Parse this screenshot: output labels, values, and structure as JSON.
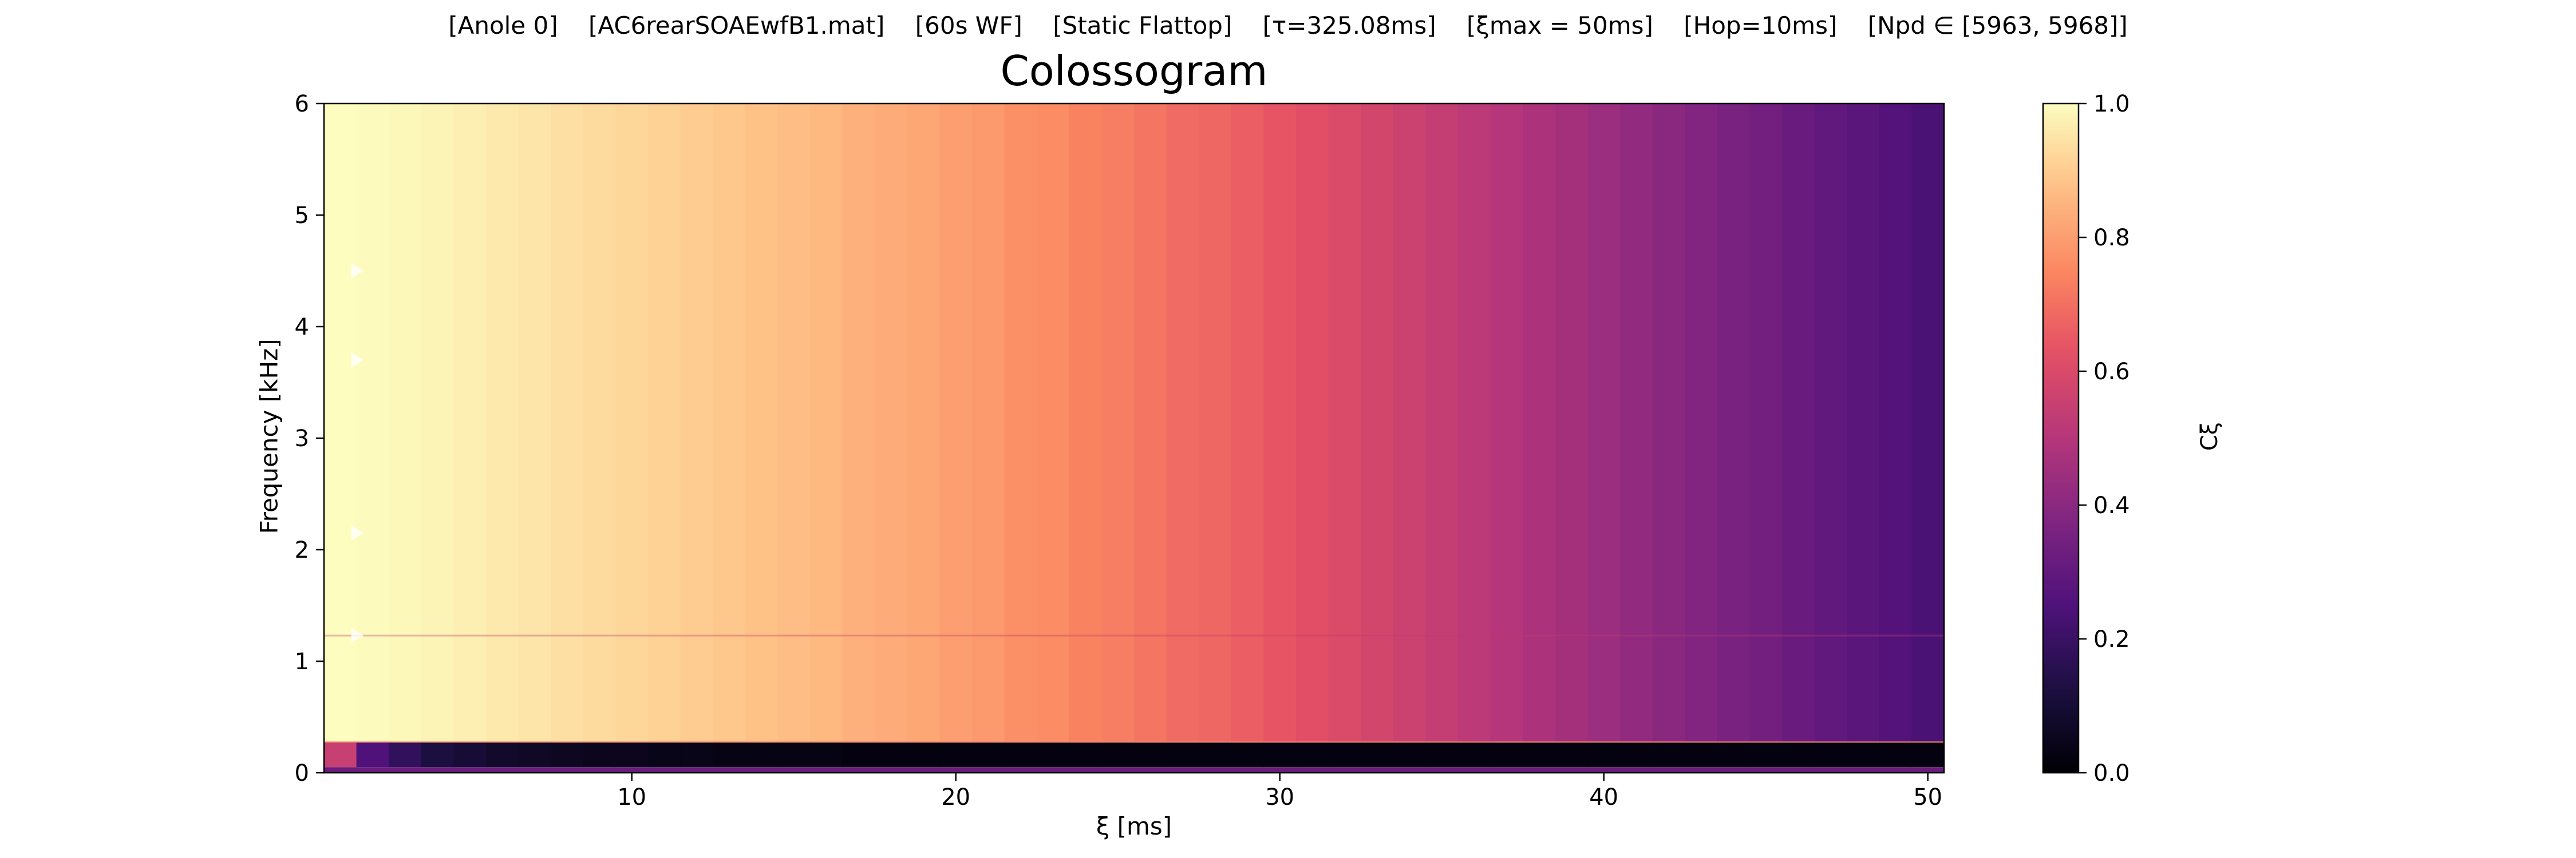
{
  "header": {
    "segments": [
      "[Anole 0]",
      "[AC6rearSOAEwfB1.mat]",
      "[60s WF]",
      "[Static Flattop]",
      "[τ=325.08ms]",
      "[ξmax = 50ms]",
      "[Hop=10ms]",
      "[Npd ∈ [5963, 5968]]"
    ]
  },
  "colorbar": {
    "label": "Cξ",
    "colormap": "magma",
    "ticks": [
      "0.0",
      "0.2",
      "0.4",
      "0.6",
      "0.8",
      "1.0"
    ],
    "range": [
      0.0,
      1.0
    ]
  },
  "chart_data": {
    "type": "heatmap",
    "title": "Colossogram",
    "xlabel": "ξ [ms]",
    "ylabel": "Frequency [kHz]",
    "xlim": [
      0.5,
      50.5
    ],
    "ylim": [
      0,
      6
    ],
    "xticks": [
      "10",
      "20",
      "30",
      "40",
      "50"
    ],
    "yticks": [
      "0",
      "1",
      "2",
      "3",
      "4",
      "5",
      "6"
    ],
    "grid": false,
    "x_ms": [
      1,
      2,
      3,
      4,
      5,
      6,
      7,
      8,
      9,
      10,
      11,
      12,
      13,
      14,
      15,
      16,
      17,
      18,
      19,
      20,
      21,
      22,
      23,
      24,
      25,
      26,
      27,
      28,
      29,
      30,
      31,
      32,
      33,
      34,
      35,
      36,
      37,
      38,
      39,
      40,
      41,
      42,
      43,
      44,
      45,
      46,
      47,
      48,
      49,
      50
    ],
    "coherence_above_0.3kHz": [
      1.0,
      0.995,
      0.99,
      0.98,
      0.97,
      0.96,
      0.95,
      0.94,
      0.93,
      0.92,
      0.91,
      0.9,
      0.89,
      0.88,
      0.87,
      0.86,
      0.84,
      0.83,
      0.82,
      0.8,
      0.79,
      0.77,
      0.76,
      0.74,
      0.73,
      0.71,
      0.69,
      0.68,
      0.66,
      0.64,
      0.62,
      0.6,
      0.58,
      0.56,
      0.54,
      0.52,
      0.5,
      0.48,
      0.46,
      0.44,
      0.42,
      0.4,
      0.38,
      0.36,
      0.34,
      0.32,
      0.3,
      0.28,
      0.26,
      0.24
    ],
    "low_band": {
      "freq_range_khz": [
        0.05,
        0.27
      ],
      "coherence": [
        0.55,
        0.25,
        0.18,
        0.12,
        0.1,
        0.08,
        0.07,
        0.06,
        0.05,
        0.05,
        0.04,
        0.04,
        0.03,
        0.03,
        0.03,
        0.03,
        0.02,
        0.02,
        0.02,
        0.02,
        0.02,
        0.02,
        0.02,
        0.02,
        0.02,
        0.02,
        0.02,
        0.02,
        0.02,
        0.02,
        0.02,
        0.02,
        0.02,
        0.02,
        0.02,
        0.02,
        0.02,
        0.02,
        0.02,
        0.02,
        0.02,
        0.02,
        0.02,
        0.02,
        0.02,
        0.02,
        0.02,
        0.02,
        0.02,
        0.02
      ]
    },
    "band_boundary_khz": 0.28,
    "peak_markers_khz": [
      4.5,
      3.7,
      2.15,
      1.23
    ]
  }
}
